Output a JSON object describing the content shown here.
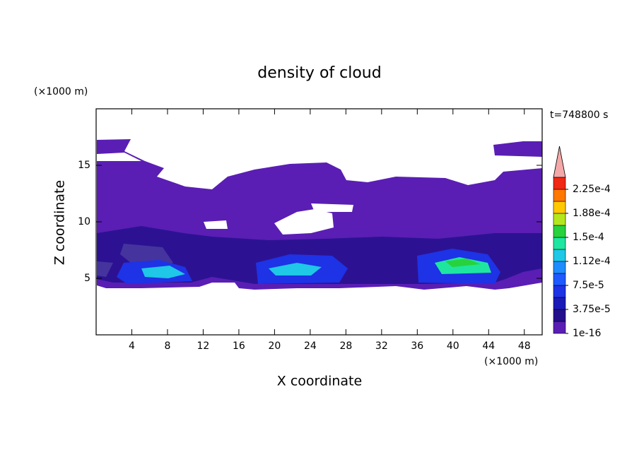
{
  "chart_data": {
    "type": "contour",
    "title": "density of cloud",
    "x_label": "X coordinate",
    "y_label": "Z coordinate",
    "x_unit": "(×1000 m)",
    "y_unit": "(×1000 m)",
    "time_label": "t=748800 s",
    "xlim": [
      0,
      50
    ],
    "xticks": [
      4,
      8,
      12,
      16,
      20,
      24,
      28,
      32,
      36,
      40,
      44,
      48
    ],
    "ylim": [
      0,
      20
    ],
    "yticks": [
      5,
      10,
      15
    ],
    "colorbar": {
      "lim": [
        1e-16,
        0.00024375
      ],
      "ticks": [
        {
          "value": 1e-16,
          "label": "1e-16"
        },
        {
          "value": 3.75e-05,
          "label": "3.75e-5"
        },
        {
          "value": 7.5e-05,
          "label": "7.5e-5"
        },
        {
          "value": 0.0001125,
          "label": "1.12e-4"
        },
        {
          "value": 0.00015,
          "label": "1.5e-4"
        },
        {
          "value": 0.0001875,
          "label": "1.88e-4"
        },
        {
          "value": 0.000225,
          "label": "2.25e-4"
        }
      ],
      "colors": [
        "#5a1eb4",
        "#24108c",
        "#1a1ab8",
        "#1e32e6",
        "#1e5aff",
        "#1e8cff",
        "#1ec8e6",
        "#1ee6a0",
        "#28d23c",
        "#b4e61e",
        "#ffc800",
        "#ff7800",
        "#f02814"
      ],
      "extend_color": "#f4a8a8"
    }
  }
}
